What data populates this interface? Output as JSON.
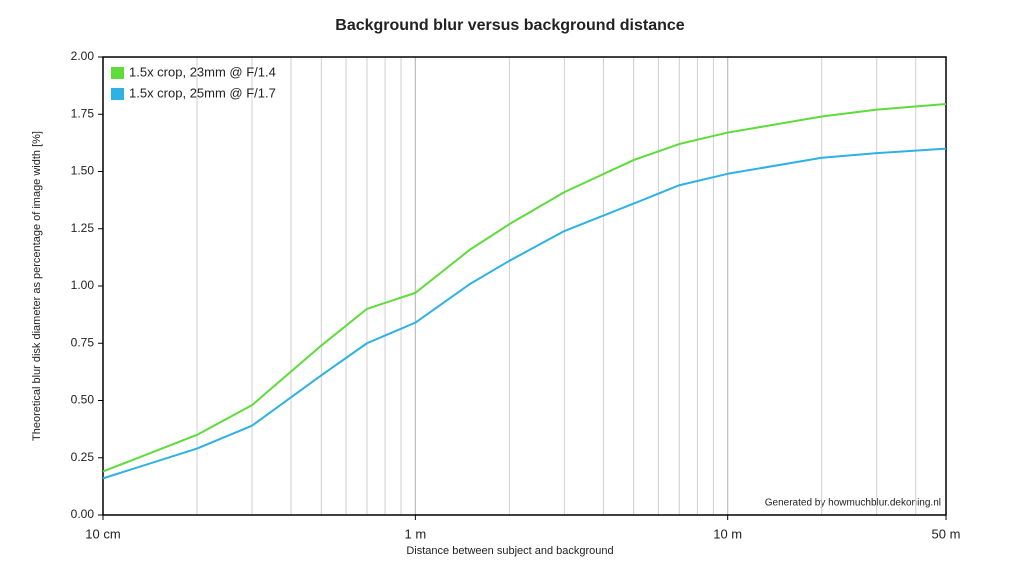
{
  "chart_data": {
    "type": "line",
    "title": "Background blur versus background distance",
    "xlabel": "Distance between subject and background",
    "ylabel": "Theoretical blur disk diameter as percentage of image width [%]",
    "annotation": "Generated by howmuchblur.dekoning.nl",
    "x": [
      0.1,
      0.2,
      0.3,
      0.5,
      0.7,
      1,
      1.5,
      2,
      3,
      5,
      7,
      10,
      20,
      30,
      50
    ],
    "series": [
      {
        "name": "1.5x crop, 23mm @ F/1.4",
        "color": "#5ddc3c",
        "values": [
          0.19,
          0.35,
          0.48,
          0.74,
          0.9,
          0.97,
          1.16,
          1.27,
          1.41,
          1.55,
          1.62,
          1.67,
          1.74,
          1.77,
          1.795
        ]
      },
      {
        "name": "1.5x crop, 25mm @ F/1.7",
        "color": "#2eb1e3",
        "values": [
          0.16,
          0.29,
          0.39,
          0.61,
          0.75,
          0.84,
          1.01,
          1.11,
          1.24,
          1.36,
          1.44,
          1.49,
          1.56,
          1.58,
          1.6
        ]
      }
    ],
    "xlim": [
      0.1,
      50
    ],
    "xticks": [
      {
        "value": 0.1,
        "label": "10 cm"
      },
      {
        "value": 1,
        "label": "1 m"
      },
      {
        "value": 10,
        "label": "10 m"
      },
      {
        "value": 50,
        "label": "50 m"
      }
    ],
    "ylim": [
      0,
      2
    ],
    "yticks": [
      {
        "value": 0,
        "label": "0.00"
      },
      {
        "value": 0.25,
        "label": "0.25"
      },
      {
        "value": 0.5,
        "label": "0.50"
      },
      {
        "value": 0.75,
        "label": "0.75"
      },
      {
        "value": 1,
        "label": "1.00"
      },
      {
        "value": 1.25,
        "label": "1.25"
      },
      {
        "value": 1.5,
        "label": "1.50"
      },
      {
        "value": 1.75,
        "label": "1.75"
      },
      {
        "value": 2,
        "label": "2.00"
      }
    ],
    "xscale": "log",
    "grid": "x",
    "legend": "top-left"
  }
}
